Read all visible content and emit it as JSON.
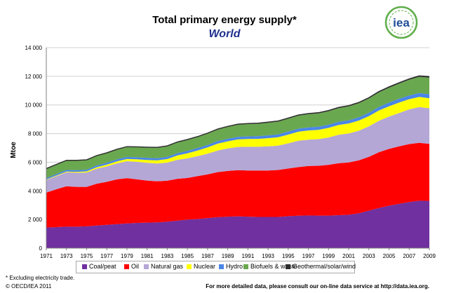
{
  "chart_data": {
    "type": "area",
    "stacked": true,
    "title": "Total primary energy supply*",
    "subtitle": "World",
    "ylabel": "Mtoe",
    "xlabel": "",
    "ylim": [
      0,
      14000
    ],
    "xlim": [
      1971,
      2009
    ],
    "y_ticks": [
      "0",
      "2 000",
      "4 000",
      "6 000",
      "8 000",
      "10 000",
      "12 000",
      "14 000"
    ],
    "x_tick_labels": [
      "1971",
      "1973",
      "1975",
      "1977",
      "1979",
      "1981",
      "1983",
      "1985",
      "1987",
      "1989",
      "1991",
      "1993",
      "1995",
      "1997",
      "1999",
      "2001",
      "2003",
      "2005",
      "2007",
      "2009"
    ],
    "legend_position": "bottom",
    "x": [
      1971,
      1972,
      1973,
      1974,
      1975,
      1976,
      1977,
      1978,
      1979,
      1980,
      1981,
      1982,
      1983,
      1984,
      1985,
      1986,
      1987,
      1988,
      1989,
      1990,
      1991,
      1992,
      1993,
      1994,
      1995,
      1996,
      1997,
      1998,
      1999,
      2000,
      2001,
      2002,
      2003,
      2004,
      2005,
      2006,
      2007,
      2008,
      2009
    ],
    "series": [
      {
        "name": "Coal/peat",
        "color": "#7030a0",
        "values": [
          1440,
          1470,
          1500,
          1500,
          1520,
          1580,
          1630,
          1680,
          1730,
          1760,
          1780,
          1800,
          1850,
          1920,
          1990,
          2030,
          2100,
          2160,
          2200,
          2220,
          2200,
          2180,
          2180,
          2180,
          2230,
          2260,
          2280,
          2270,
          2270,
          2300,
          2330,
          2440,
          2620,
          2800,
          2960,
          3100,
          3220,
          3310,
          3300
        ]
      },
      {
        "name": "Oil",
        "color": "#ff0000",
        "values": [
          2440,
          2640,
          2820,
          2780,
          2760,
          2920,
          3000,
          3120,
          3160,
          3040,
          2940,
          2870,
          2860,
          2920,
          2910,
          3000,
          3050,
          3150,
          3190,
          3230,
          3220,
          3240,
          3240,
          3280,
          3330,
          3400,
          3460,
          3480,
          3550,
          3630,
          3650,
          3690,
          3760,
          3900,
          3970,
          4010,
          4050,
          4040,
          3980
        ]
      },
      {
        "name": "Natural gas",
        "color": "#b4a7d6",
        "values": [
          880,
          920,
          980,
          990,
          1000,
          1050,
          1080,
          1120,
          1180,
          1230,
          1240,
          1240,
          1260,
          1330,
          1370,
          1390,
          1450,
          1510,
          1570,
          1620,
          1660,
          1660,
          1690,
          1700,
          1760,
          1840,
          1840,
          1860,
          1910,
          1990,
          2030,
          2070,
          2130,
          2200,
          2260,
          2330,
          2420,
          2500,
          2490
        ]
      },
      {
        "name": "Nuclear",
        "color": "#ffff00",
        "values": [
          30,
          40,
          50,
          60,
          80,
          100,
          120,
          140,
          160,
          170,
          200,
          220,
          250,
          300,
          360,
          400,
          440,
          480,
          500,
          520,
          540,
          550,
          570,
          590,
          610,
          630,
          640,
          650,
          670,
          680,
          700,
          710,
          710,
          720,
          720,
          730,
          710,
          710,
          700
        ]
      },
      {
        "name": "Hydro",
        "color": "#4a86e8",
        "values": [
          100,
          105,
          110,
          120,
          120,
          125,
          128,
          135,
          140,
          145,
          148,
          150,
          157,
          163,
          165,
          168,
          170,
          173,
          176,
          180,
          185,
          188,
          195,
          196,
          205,
          210,
          215,
          218,
          220,
          225,
          220,
          225,
          230,
          240,
          250,
          260,
          266,
          275,
          278
        ]
      },
      {
        "name": "Biofuels & waste",
        "color": "#6aa84f",
        "values": [
          650,
          655,
          660,
          665,
          670,
          675,
          680,
          690,
          700,
          710,
          720,
          730,
          740,
          750,
          760,
          770,
          790,
          810,
          830,
          850,
          860,
          870,
          880,
          890,
          900,
          910,
          920,
          930,
          940,
          955,
          970,
          985,
          1000,
          1020,
          1040,
          1060,
          1090,
          1130,
          1160
        ]
      },
      {
        "name": "Geothermal/solar/wind",
        "color": "#2d2d2d",
        "values": [
          15,
          15,
          16,
          16,
          17,
          17,
          18,
          18,
          19,
          20,
          22,
          24,
          26,
          28,
          30,
          32,
          34,
          36,
          38,
          40,
          40,
          42,
          42,
          43,
          44,
          45,
          46,
          47,
          48,
          50,
          50,
          52,
          54,
          56,
          58,
          60,
          62,
          68,
          70
        ]
      }
    ]
  },
  "logo_text": "iea",
  "footnote": "* Excluding electricity trade.",
  "copyright": "© OECD/IEA 2011",
  "source_note": "For more detailed data, please consult our on-line data service at http://data.iea.org."
}
